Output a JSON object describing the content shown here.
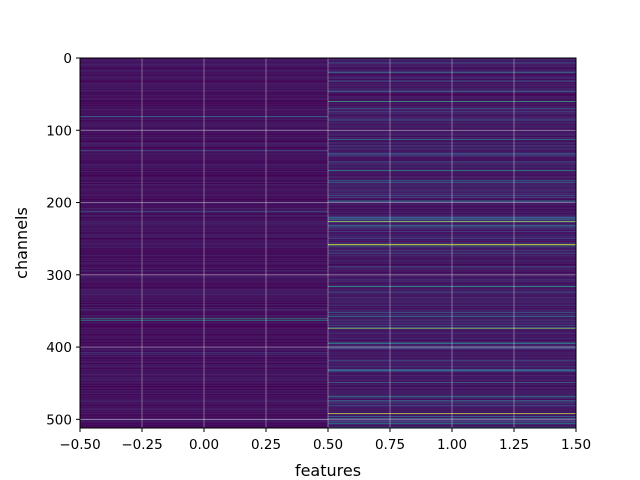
{
  "chart_data": {
    "type": "heatmap",
    "colormap": "viridis",
    "xlabel": "features",
    "ylabel": "channels",
    "xlim": [
      -0.5,
      1.5
    ],
    "ylim": [
      512,
      0
    ],
    "x_ticks": [
      "−0.50",
      "−0.25",
      "0.00",
      "0.25",
      "0.50",
      "0.75",
      "1.00",
      "1.25",
      "1.50"
    ],
    "y_ticks": [
      "0",
      "100",
      "200",
      "300",
      "400",
      "500"
    ],
    "grid": true,
    "columns": [
      0,
      1
    ],
    "rows": 512,
    "notes": [],
    "highlight_rows": {
      "feature_0": [
        {
          "channel": 81,
          "value": 0.35
        },
        {
          "channel": 128,
          "value": 0.22
        },
        {
          "channel": 213,
          "value": 0.3
        },
        {
          "channel": 361,
          "value": 0.55
        },
        {
          "channel": 363,
          "value": 0.4
        },
        {
          "channel": 408,
          "value": 0.25
        },
        {
          "channel": 500,
          "value": 0.2
        }
      ],
      "feature_1": [
        {
          "channel": 20,
          "value": 0.35
        },
        {
          "channel": 60,
          "value": 0.6
        },
        {
          "channel": 113,
          "value": 0.45
        },
        {
          "channel": 156,
          "value": 0.5
        },
        {
          "channel": 170,
          "value": 0.45
        },
        {
          "channel": 198,
          "value": 0.4
        },
        {
          "channel": 226,
          "value": 0.85
        },
        {
          "channel": 232,
          "value": 0.4
        },
        {
          "channel": 258,
          "value": 0.95
        },
        {
          "channel": 260,
          "value": 0.6
        },
        {
          "channel": 316,
          "value": 0.55
        },
        {
          "channel": 358,
          "value": 0.45
        },
        {
          "channel": 374,
          "value": 0.8
        },
        {
          "channel": 395,
          "value": 0.45
        },
        {
          "channel": 433,
          "value": 0.4
        },
        {
          "channel": 468,
          "value": 0.5
        },
        {
          "channel": 492,
          "value": 0.9
        },
        {
          "channel": 496,
          "value": 0.35
        },
        {
          "channel": 506,
          "value": 0.45
        }
      ]
    }
  }
}
